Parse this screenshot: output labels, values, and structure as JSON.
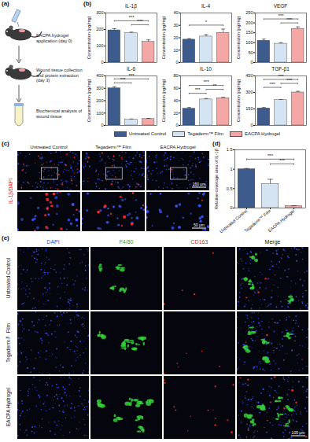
{
  "panel_labels": [
    "(a)",
    "(b)",
    "(c)",
    "(d)",
    "(e)"
  ],
  "schematic": {
    "steps": [
      "EACPA hydrogel application (day 0)",
      "Wound tissue collection and protein extraction (day 3)",
      "Biochemical analysis of wound tissue"
    ]
  },
  "images_c": {
    "columns": [
      "Untreated Control",
      "Tegaderm™ Film",
      "EACPA Hydrogel"
    ],
    "stain": "IL-1β/DAPI",
    "scale_bars": [
      "100 μm",
      "50 μm"
    ]
  },
  "images_e": {
    "columns": [
      "DAPI",
      "F4/80",
      "CD163",
      "Merge"
    ],
    "rows": [
      "Untreated Control",
      "Tegaderm™ Film",
      "EACPA Hydrogel"
    ],
    "scale_bar": "100 μm"
  },
  "chart_data": [
    {
      "type": "bar",
      "title": "IL-1β",
      "ylabel": "Concentration (pg/mg)",
      "categories": [
        "Untreated Control",
        "Tegaderm™ Film",
        "EACPA Hydrogel"
      ],
      "values": [
        195,
        178,
        125
      ],
      "errors": [
        10,
        6,
        12
      ],
      "colors": [
        "#3d5b8c",
        "#d4e4f3",
        "#f4a7a5"
      ],
      "ylim": [
        0,
        300
      ],
      "yticks": [
        0,
        100,
        200,
        300
      ],
      "grid": false,
      "tick_labels": "y",
      "legend": "bottom",
      "significance": [
        {
          "between": [
            "Tegaderm™ Film",
            "EACPA Hydrogel"
          ],
          "label": "***"
        },
        {
          "between": [
            "Untreated Control",
            "EACPA Hydrogel"
          ],
          "label": "***"
        }
      ]
    },
    {
      "type": "bar",
      "title": "IL-4",
      "ylabel": "Concentration (pg/mg)",
      "categories": [
        "Untreated Control",
        "Tegaderm™ Film",
        "EACPA Hydrogel"
      ],
      "values": [
        18.5,
        21,
        24
      ],
      "errors": [
        0.8,
        1.5,
        3
      ],
      "colors": [
        "#3d5b8c",
        "#d4e4f3",
        "#f4a7a5"
      ],
      "ylim": [
        0,
        40
      ],
      "yticks": [
        0,
        10,
        20,
        30,
        40
      ],
      "grid": false,
      "tick_labels": "y",
      "legend": "bottom",
      "significance": [
        {
          "between": [
            "Untreated Control",
            "EACPA Hydrogel"
          ],
          "label": "*"
        }
      ]
    },
    {
      "type": "bar",
      "title": "VEGF",
      "ylabel": "Concentration (pg/mg)",
      "categories": [
        "Untreated Control",
        "Tegaderm™ Film",
        "EACPA Hydrogel"
      ],
      "values": [
        110,
        95,
        170
      ],
      "errors": [
        8,
        5,
        10
      ],
      "colors": [
        "#3d5b8c",
        "#d4e4f3",
        "#f4a7a5"
      ],
      "ylim": [
        0,
        250
      ],
      "yticks": [
        0,
        50,
        100,
        150,
        200,
        250
      ],
      "grid": false,
      "tick_labels": "y",
      "legend": "bottom",
      "significance": [
        {
          "between": [
            "Tegaderm™ Film",
            "EACPA Hydrogel"
          ],
          "label": "***"
        },
        {
          "between": [
            "Untreated Control",
            "EACPA Hydrogel"
          ],
          "label": "***"
        }
      ]
    },
    {
      "type": "bar",
      "title": "IL-6",
      "ylabel": "Concentration (pg/mg)",
      "categories": [
        "Untreated Control",
        "Tegaderm™ Film",
        "EACPA Hydrogel"
      ],
      "values": [
        300,
        48,
        52
      ],
      "errors": [
        12,
        4,
        5
      ],
      "colors": [
        "#3d5b8c",
        "#d4e4f3",
        "#f4a7a5"
      ],
      "ylim": [
        0,
        400
      ],
      "yticks": [
        0,
        100,
        200,
        300,
        400
      ],
      "grid": false,
      "tick_labels": "y",
      "legend": "bottom",
      "significance": [
        {
          "between": [
            "Untreated Control",
            "Tegaderm™ Film"
          ],
          "label": "***"
        },
        {
          "between": [
            "Untreated Control",
            "EACPA Hydrogel"
          ],
          "label": "***"
        }
      ]
    },
    {
      "type": "bar",
      "title": "IL-10",
      "ylabel": "Concentration (pg/mg)",
      "categories": [
        "Untreated Control",
        "Tegaderm™ Film",
        "EACPA Hydrogel"
      ],
      "values": [
        27,
        42,
        44
      ],
      "errors": [
        2,
        1.5,
        1.5
      ],
      "colors": [
        "#3d5b8c",
        "#d4e4f3",
        "#f4a7a5"
      ],
      "ylim": [
        0,
        80
      ],
      "yticks": [
        0,
        20,
        40,
        60,
        80
      ],
      "grid": false,
      "tick_labels": "y",
      "legend": "bottom",
      "significance": [
        {
          "between": [
            "Untreated Control",
            "Tegaderm™ Film"
          ],
          "label": "***"
        },
        {
          "between": [
            "Tegaderm™ Film",
            "EACPA Hydrogel"
          ],
          "label": "**"
        },
        {
          "between": [
            "Untreated Control",
            "EACPA Hydrogel"
          ],
          "label": "***"
        }
      ]
    },
    {
      "type": "bar",
      "title": "TGF-β1",
      "ylabel": "Concentration (pg/mg)",
      "categories": [
        "Untreated Control",
        "Tegaderm™ Film",
        "EACPA Hydrogel"
      ],
      "values": [
        155,
        230,
        300
      ],
      "errors": [
        8,
        6,
        10
      ],
      "colors": [
        "#3d5b8c",
        "#d4e4f3",
        "#f4a7a5"
      ],
      "ylim": [
        0,
        450
      ],
      "yticks": [
        0,
        150,
        300,
        450
      ],
      "grid": false,
      "tick_labels": "y",
      "legend": "bottom",
      "significance": [
        {
          "between": [
            "Untreated Control",
            "Tegaderm™ Film"
          ],
          "label": "***"
        },
        {
          "between": [
            "Tegaderm™ Film",
            "EACPA Hydrogel"
          ],
          "label": "***"
        },
        {
          "between": [
            "Untreated Control",
            "EACPA Hydrogel"
          ],
          "label": "***"
        }
      ]
    },
    {
      "type": "bar",
      "ylabel": "Relative coverage area of IL-1β",
      "categories": [
        "Untreated Control",
        "Tegaderm™ Film",
        "EACPA Hydrogel"
      ],
      "values": [
        1.0,
        0.62,
        0.05
      ],
      "errors": [
        0.02,
        0.12,
        0.01
      ],
      "colors": [
        "#3d5b8c",
        "#d4e4f3",
        "#f4a7a5"
      ],
      "ylim": [
        0,
        1.5
      ],
      "yticks": [
        0,
        0.5,
        1,
        1.5
      ],
      "grid": false,
      "significance": [
        {
          "between": [
            "Tegaderm™ Film",
            "EACPA Hydrogel"
          ],
          "label": "***"
        },
        {
          "between": [
            "Untreated Control",
            "EACPA Hydrogel"
          ],
          "label": "***"
        }
      ]
    }
  ]
}
